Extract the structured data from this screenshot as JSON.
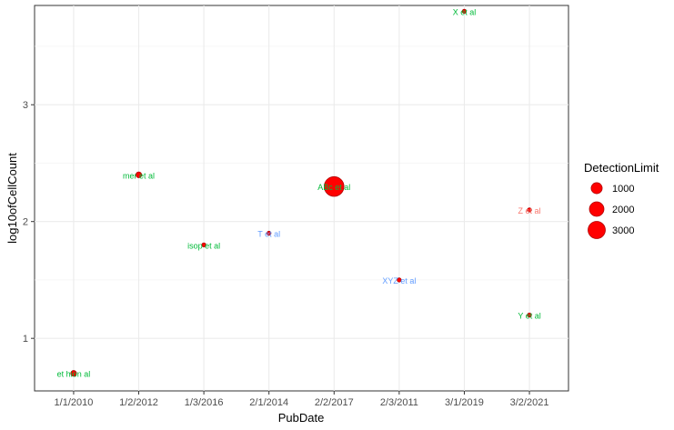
{
  "chart_data": {
    "type": "scatter",
    "xlabel": "PubDate",
    "ylabel": "log10ofCellCount",
    "categories": [
      "1/1/2010",
      "1/2/2012",
      "1/3/2016",
      "2/1/2014",
      "2/2/2017",
      "2/3/2011",
      "3/1/2019",
      "3/2/2021"
    ],
    "yticks": [
      1,
      2,
      3
    ],
    "ylim": [
      0.55,
      3.85
    ],
    "grid": true,
    "points": [
      {
        "x": "1/1/2010",
        "y": 0.7,
        "label": "et hion al",
        "label_color": "#00BA38",
        "detection_limit": 100
      },
      {
        "x": "1/2/2012",
        "y": 2.4,
        "label": "mer et al",
        "label_color": "#00BA38",
        "detection_limit": 100
      },
      {
        "x": "1/3/2016",
        "y": 1.8,
        "label": "isop et al",
        "label_color": "#00BA38",
        "detection_limit": 20
      },
      {
        "x": "2/1/2014",
        "y": 1.9,
        "label": "T et al",
        "label_color": "#619CFF",
        "detection_limit": 20
      },
      {
        "x": "2/2/2017",
        "y": 2.3,
        "label": "ABc et al",
        "label_color": "#00BA38",
        "detection_limit": 3200
      },
      {
        "x": "2/3/2011",
        "y": 1.5,
        "label": "XYZ et al",
        "label_color": "#619CFF",
        "detection_limit": 20
      },
      {
        "x": "3/1/2019",
        "y": 3.8,
        "label": "X et al",
        "label_color": "#00BA38",
        "detection_limit": 20
      },
      {
        "x": "3/2/2021",
        "y": 2.1,
        "label": "Z et al",
        "label_color": "#F8766D",
        "detection_limit": 20
      },
      {
        "x": "3/2/2021",
        "y": 1.2,
        "label": "Y et al",
        "label_color": "#00BA38",
        "detection_limit": 20
      }
    ],
    "legend": {
      "title": "DetectionLimit",
      "placement": "right",
      "entries": [
        {
          "label": "1000",
          "value": 1000
        },
        {
          "label": "2000",
          "value": 2000
        },
        {
          "label": "3000",
          "value": 3000
        }
      ]
    },
    "point_fill": "#ff0000",
    "point_stroke": "#b00000"
  }
}
